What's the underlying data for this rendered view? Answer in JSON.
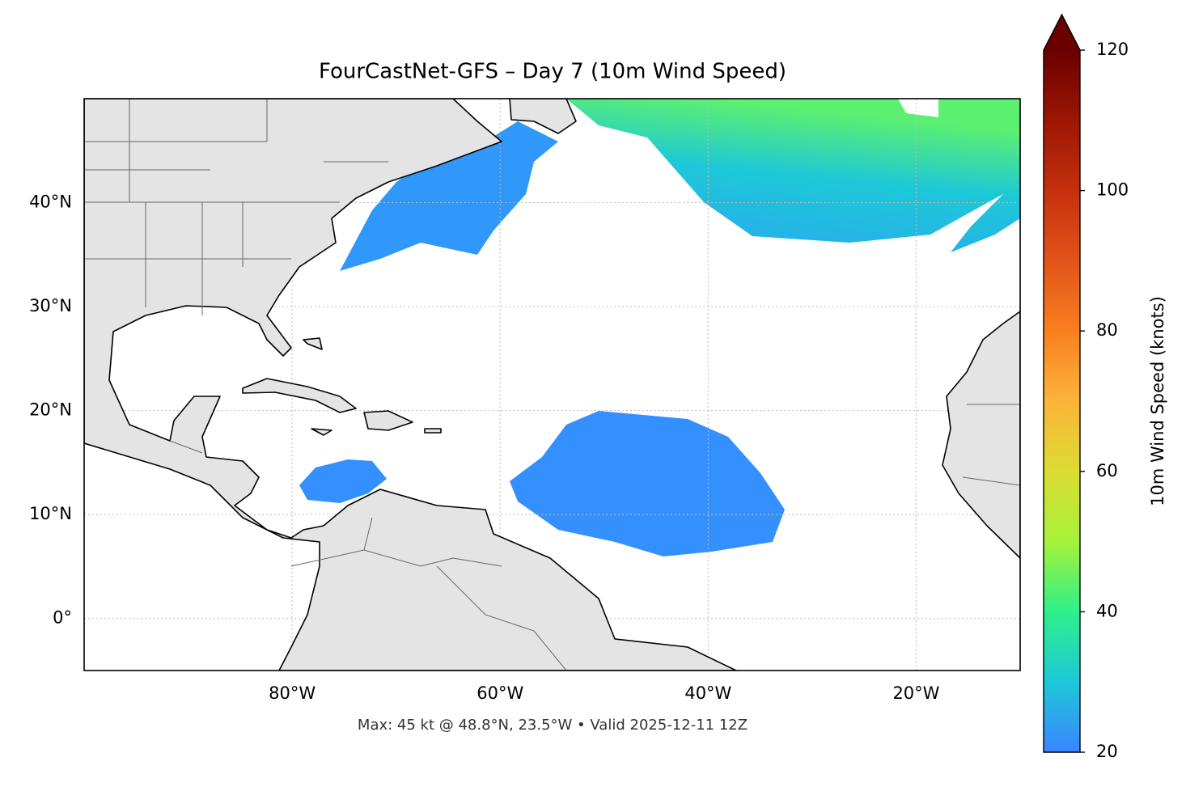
{
  "map": {
    "title": "FourCastNet-GFS – Day 7 (10m Wind Speed)",
    "footnote": "Max: 45 kt @ 48.8°N, 23.5°W • Valid 2025-12-11 12Z",
    "lonlim": [
      -100,
      -10
    ],
    "latlim": [
      -5,
      50
    ],
    "lonticks": [
      {
        "value": -80,
        "label": "80°W"
      },
      {
        "value": -60,
        "label": "60°W"
      },
      {
        "value": -40,
        "label": "40°W"
      },
      {
        "value": -20,
        "label": "20°W"
      }
    ],
    "latticks": [
      {
        "value": 0,
        "label": "0°"
      },
      {
        "value": 10,
        "label": "10°N"
      },
      {
        "value": 20,
        "label": "20°N"
      },
      {
        "value": 30,
        "label": "30°N"
      },
      {
        "value": 40,
        "label": "40°N"
      }
    ],
    "grid": true,
    "colorbar": {
      "label": "10m Wind Speed (knots)",
      "lim": [
        20,
        120
      ],
      "ticks": [
        20,
        40,
        60,
        80,
        100,
        120
      ],
      "colormap": [
        "#3a85ff",
        "#1ec8d8",
        "#2ef08a",
        "#a6f23a",
        "#dcdc32",
        "#fcb43a",
        "#f97f20",
        "#e2531a",
        "#c6300e",
        "#9c1604",
        "#6a0000"
      ]
    }
  }
}
